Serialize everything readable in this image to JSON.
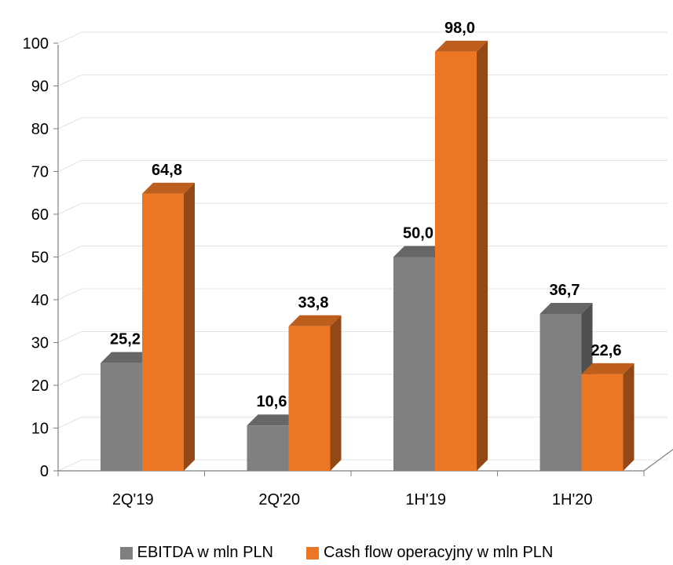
{
  "chart_data": {
    "type": "bar",
    "categories": [
      "2Q'19",
      "2Q'20",
      "1H'19",
      "1H'20"
    ],
    "series": [
      {
        "name": "EBITDA w mln PLN",
        "values": [
          25.2,
          10.6,
          50.0,
          36.7
        ],
        "labels": [
          "25,2",
          "10,6",
          "50,0",
          "36,7"
        ],
        "color": "#808080"
      },
      {
        "name": "Cash flow operacyjny w mln PLN",
        "values": [
          64.8,
          33.8,
          98.0,
          22.6
        ],
        "labels": [
          "64,8",
          "33,8",
          "98,0",
          "22,6"
        ],
        "color": "#ED7624"
      }
    ],
    "ylim": [
      0,
      100
    ],
    "yticks": [
      "0",
      "10",
      "20",
      "30",
      "40",
      "50",
      "60",
      "70",
      "80",
      "90",
      "100"
    ],
    "grid": true,
    "legend_position": "bottom"
  }
}
